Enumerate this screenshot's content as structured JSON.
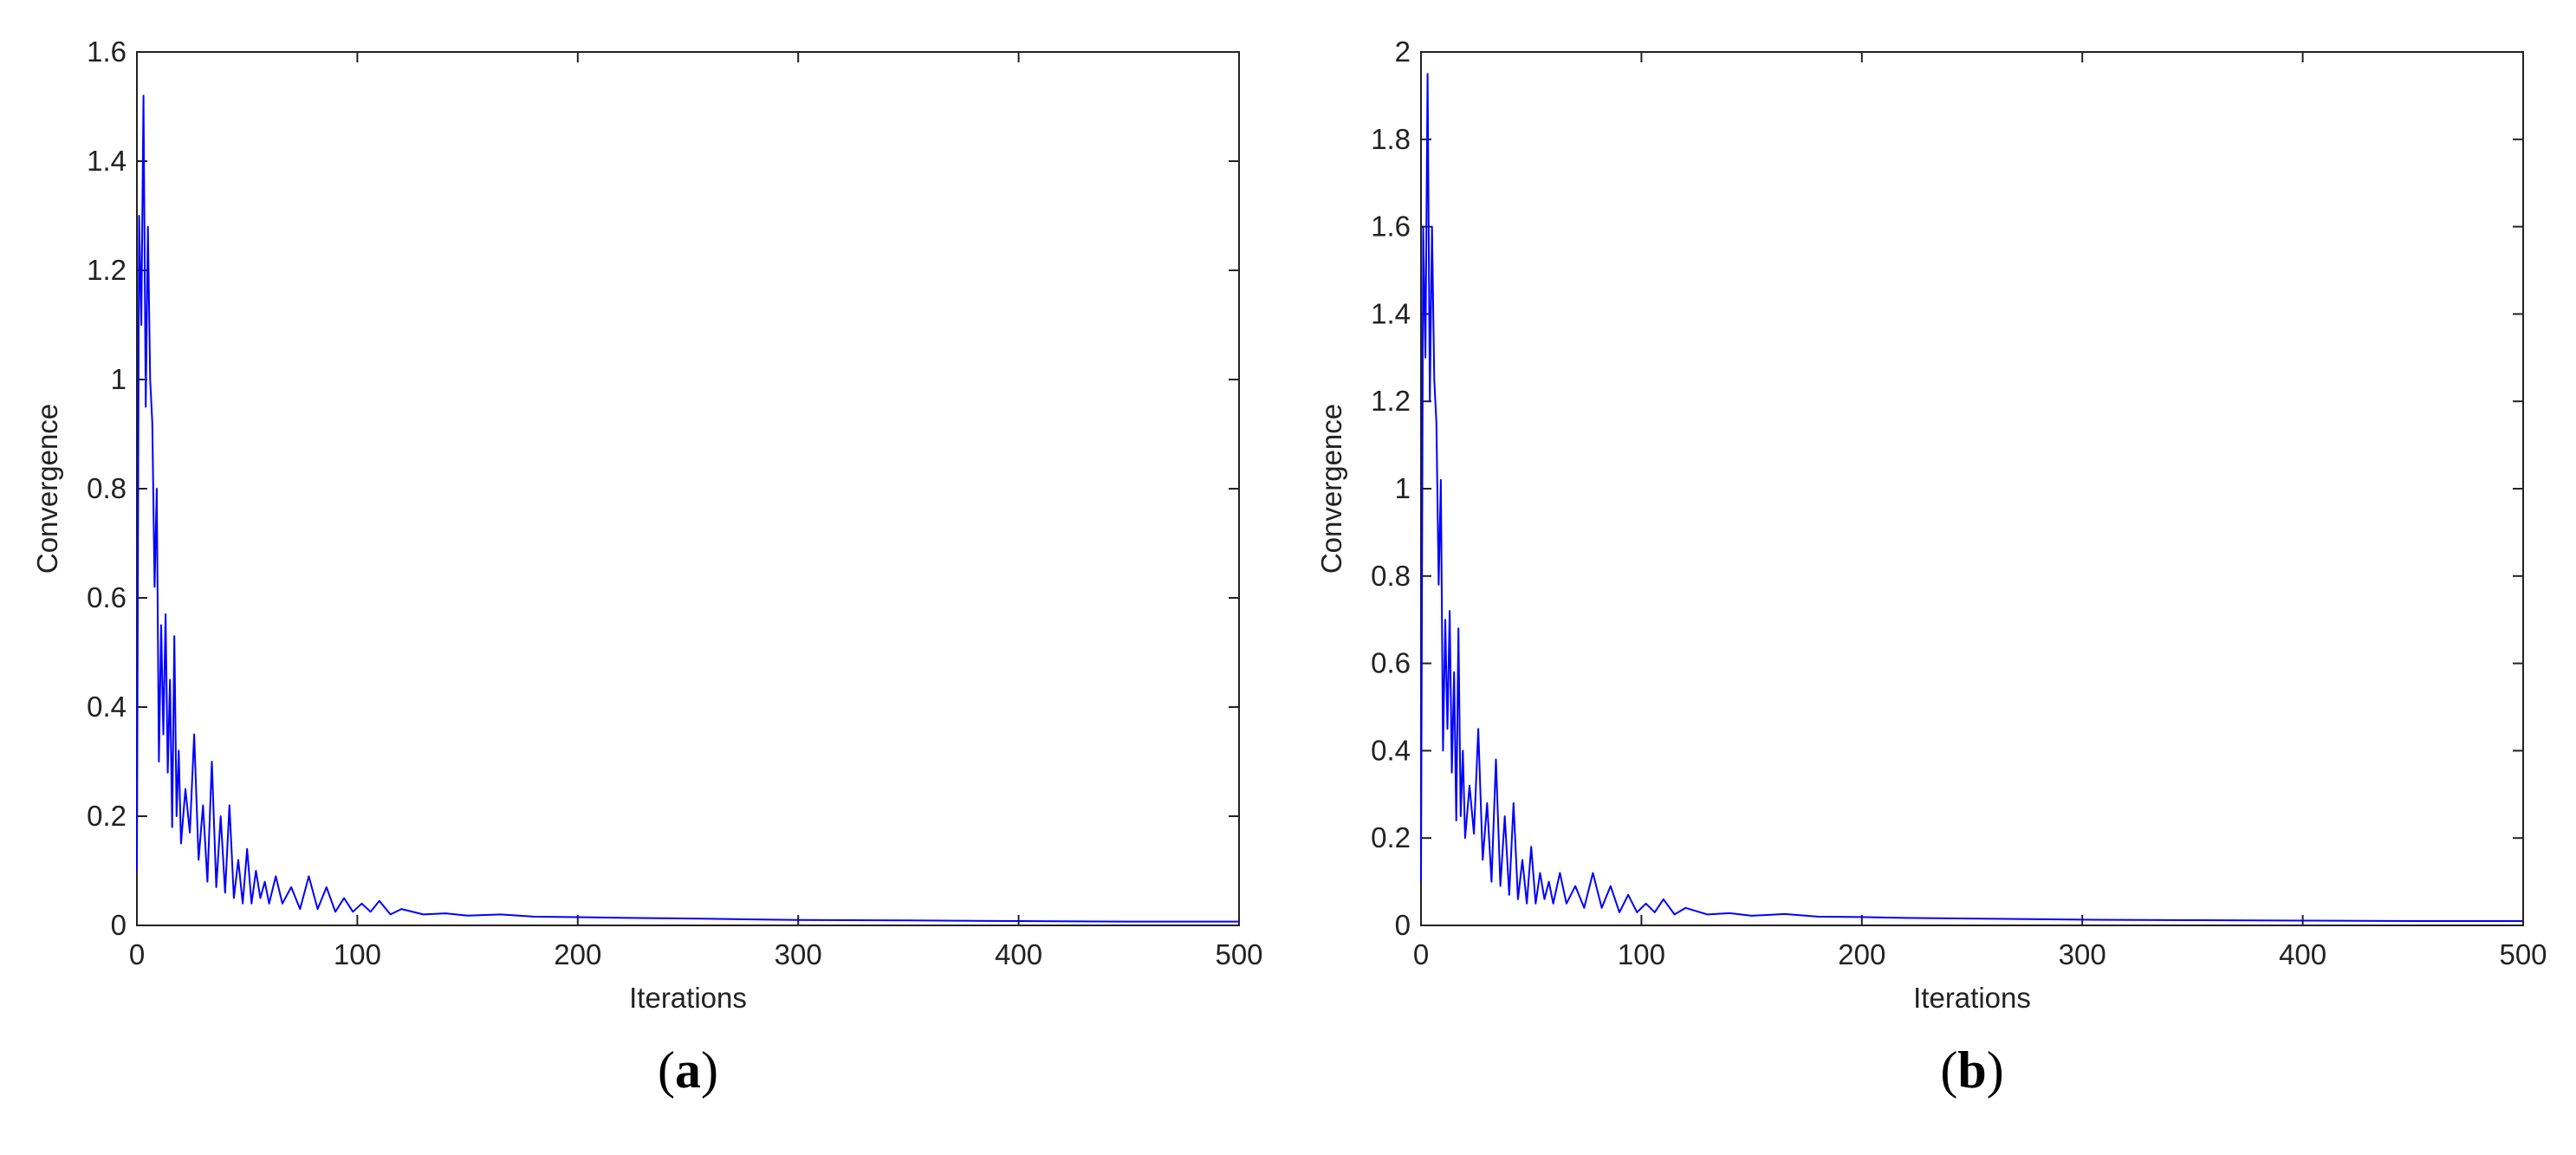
{
  "colors": {
    "series": "#0000ff",
    "axes": "#222222",
    "background": "#ffffff"
  },
  "chart_data": [
    {
      "type": "line",
      "panel_label": "a",
      "xlabel": "Iterations",
      "ylabel": "Convergence",
      "xlim": [
        0,
        500
      ],
      "ylim": [
        0,
        1.6
      ],
      "xticks": [
        0,
        100,
        200,
        300,
        400,
        500
      ],
      "yticks": [
        0,
        0.2,
        0.4,
        0.6,
        0.8,
        1,
        1.2,
        1.4,
        1.6
      ],
      "grid": false,
      "series": [
        {
          "x": [
            0,
            1,
            2,
            3,
            4,
            5,
            6,
            7,
            8,
            9,
            10,
            11,
            12,
            13,
            14,
            15,
            16,
            17,
            18,
            19,
            20,
            22,
            24,
            26,
            28,
            30,
            32,
            34,
            36,
            38,
            40,
            42,
            44,
            46,
            48,
            50,
            52,
            54,
            56,
            58,
            60,
            63,
            66,
            70,
            74,
            78,
            82,
            86,
            90,
            94,
            98,
            102,
            106,
            110,
            115,
            120,
            130,
            140,
            150,
            165,
            180,
            200,
            220,
            240,
            260,
            280,
            300,
            350,
            400,
            450,
            500
          ],
          "values": [
            0.1,
            1.3,
            1.1,
            1.52,
            0.95,
            1.28,
            1.0,
            0.92,
            0.62,
            0.8,
            0.3,
            0.55,
            0.35,
            0.57,
            0.28,
            0.45,
            0.18,
            0.53,
            0.2,
            0.32,
            0.15,
            0.25,
            0.17,
            0.35,
            0.12,
            0.22,
            0.08,
            0.3,
            0.07,
            0.2,
            0.06,
            0.22,
            0.05,
            0.12,
            0.04,
            0.14,
            0.04,
            0.1,
            0.05,
            0.08,
            0.04,
            0.09,
            0.04,
            0.07,
            0.03,
            0.09,
            0.03,
            0.07,
            0.025,
            0.05,
            0.025,
            0.04,
            0.025,
            0.045,
            0.02,
            0.03,
            0.02,
            0.022,
            0.018,
            0.02,
            0.016,
            0.015,
            0.014,
            0.013,
            0.012,
            0.011,
            0.01,
            0.009,
            0.008,
            0.007,
            0.007
          ]
        }
      ]
    },
    {
      "type": "line",
      "panel_label": "b",
      "xlabel": "Iterations",
      "ylabel": "Convergence",
      "xlim": [
        0,
        500
      ],
      "ylim": [
        0,
        2
      ],
      "xticks": [
        0,
        100,
        200,
        300,
        400,
        500
      ],
      "yticks": [
        0,
        0.2,
        0.4,
        0.6,
        0.8,
        1,
        1.2,
        1.4,
        1.6,
        1.8,
        2
      ],
      "grid": false,
      "series": [
        {
          "x": [
            0,
            1,
            2,
            3,
            4,
            5,
            6,
            7,
            8,
            9,
            10,
            11,
            12,
            13,
            14,
            15,
            16,
            17,
            18,
            19,
            20,
            22,
            24,
            26,
            28,
            30,
            32,
            34,
            36,
            38,
            40,
            42,
            44,
            46,
            48,
            50,
            52,
            54,
            56,
            58,
            60,
            63,
            66,
            70,
            74,
            78,
            82,
            86,
            90,
            94,
            98,
            102,
            106,
            110,
            115,
            120,
            130,
            140,
            150,
            165,
            180,
            200,
            220,
            240,
            260,
            280,
            300,
            350,
            400,
            450,
            500
          ],
          "values": [
            0.1,
            1.6,
            1.3,
            1.95,
            1.2,
            1.6,
            1.25,
            1.15,
            0.78,
            1.02,
            0.4,
            0.7,
            0.45,
            0.72,
            0.35,
            0.58,
            0.24,
            0.68,
            0.25,
            0.4,
            0.2,
            0.32,
            0.21,
            0.45,
            0.15,
            0.28,
            0.1,
            0.38,
            0.09,
            0.25,
            0.07,
            0.28,
            0.06,
            0.15,
            0.05,
            0.18,
            0.05,
            0.12,
            0.06,
            0.1,
            0.05,
            0.12,
            0.05,
            0.09,
            0.04,
            0.12,
            0.04,
            0.09,
            0.03,
            0.07,
            0.03,
            0.05,
            0.03,
            0.06,
            0.025,
            0.04,
            0.025,
            0.028,
            0.022,
            0.026,
            0.02,
            0.019,
            0.017,
            0.016,
            0.015,
            0.014,
            0.013,
            0.012,
            0.011,
            0.01,
            0.01
          ]
        }
      ]
    }
  ]
}
